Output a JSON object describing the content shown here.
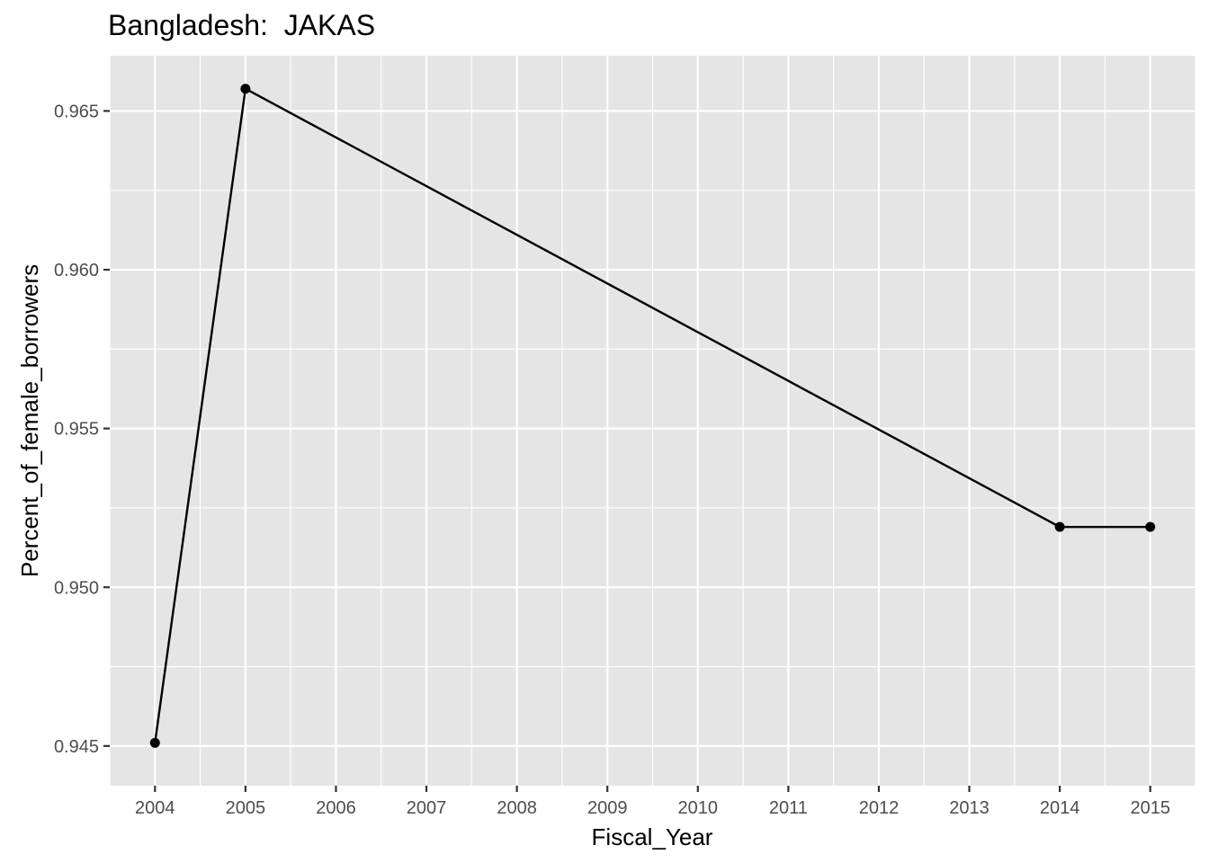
{
  "chart_data": {
    "type": "line",
    "title": "Bangladesh:  JAKAS",
    "xlabel": "Fiscal_Year",
    "ylabel": "Percent_of_female_borrowers",
    "x_ticks": [
      "2004",
      "2005",
      "2006",
      "2007",
      "2008",
      "2009",
      "2010",
      "2011",
      "2012",
      "2013",
      "2014",
      "2015"
    ],
    "y_ticks": [
      "0.945",
      "0.950",
      "0.955",
      "0.960",
      "0.965"
    ],
    "xlim": [
      2003.5,
      2015.5
    ],
    "ylim": [
      0.94375,
      0.96674
    ],
    "grid": true,
    "legend": "none",
    "series": [
      {
        "x": [
          2004,
          2005,
          2014,
          2015
        ],
        "y": [
          0.9451,
          0.9657,
          0.9519,
          0.9519
        ]
      }
    ],
    "colors": {
      "panel_background": "#e5e5e5",
      "grid_major": "#ffffff",
      "line": "#000000",
      "point": "#000000",
      "tick_text": "#4d4d4d"
    }
  }
}
